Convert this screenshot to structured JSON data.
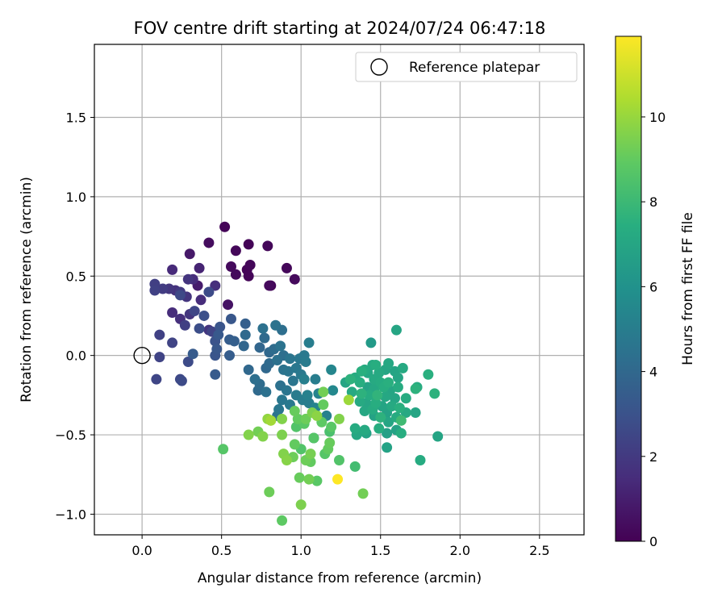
{
  "chart_data": {
    "type": "scatter",
    "title": "FOV centre drift starting at 2024/07/24 06:47:18",
    "xlabel": "Angular distance from reference (arcmin)",
    "ylabel": "Rotation from reference (arcmin)",
    "xlim": [
      -0.3,
      2.78
    ],
    "ylim": [
      -1.13,
      1.96
    ],
    "xticks": [
      "0.0",
      "0.5",
      "1.0",
      "1.5",
      "2.0",
      "2.5"
    ],
    "xtick_values": [
      0.0,
      0.5,
      1.0,
      1.5,
      2.0,
      2.5
    ],
    "yticks": [
      "−1.0",
      "−0.5",
      "0.0",
      "0.5",
      "1.0",
      "1.5"
    ],
    "ytick_values": [
      -1.0,
      -0.5,
      0.0,
      0.5,
      1.0,
      1.5
    ],
    "grid": true,
    "legend": {
      "position": "top-right",
      "label": "Reference platepar",
      "marker": "open-circle"
    },
    "reference_point": {
      "x": 0.0,
      "y": 0.0
    },
    "colorbar": {
      "label": "Hours from first FF file",
      "colormap": "viridis",
      "min": 0,
      "max": 11.9,
      "ticks": [
        "0",
        "2",
        "4",
        "6",
        "8",
        "10"
      ],
      "tick_values": [
        0,
        2,
        4,
        6,
        8,
        10
      ]
    },
    "points": [
      {
        "x": 0.52,
        "y": 0.81,
        "c": 0.1
      },
      {
        "x": 0.67,
        "y": 0.7,
        "c": 0.1
      },
      {
        "x": 0.79,
        "y": 0.69,
        "c": 0.2
      },
      {
        "x": 0.42,
        "y": 0.71,
        "c": 0.4
      },
      {
        "x": 0.59,
        "y": 0.66,
        "c": 0.2
      },
      {
        "x": 0.3,
        "y": 0.64,
        "c": 0.8
      },
      {
        "x": 0.56,
        "y": 0.56,
        "c": 0.3
      },
      {
        "x": 0.68,
        "y": 0.57,
        "c": 0.2
      },
      {
        "x": 0.66,
        "y": 0.54,
        "c": 0.1
      },
      {
        "x": 0.91,
        "y": 0.55,
        "c": 0.2
      },
      {
        "x": 0.59,
        "y": 0.51,
        "c": 0.3
      },
      {
        "x": 0.67,
        "y": 0.5,
        "c": 0.1
      },
      {
        "x": 0.96,
        "y": 0.48,
        "c": 0.3
      },
      {
        "x": 0.8,
        "y": 0.44,
        "c": 0.3
      },
      {
        "x": 0.81,
        "y": 0.44,
        "c": 0.1
      },
      {
        "x": 0.36,
        "y": 0.55,
        "c": 1.2
      },
      {
        "x": 0.19,
        "y": 0.54,
        "c": 1.4
      },
      {
        "x": 0.32,
        "y": 0.48,
        "c": 1.5
      },
      {
        "x": 0.29,
        "y": 0.48,
        "c": 1.8
      },
      {
        "x": 0.35,
        "y": 0.44,
        "c": 0.9
      },
      {
        "x": 0.46,
        "y": 0.44,
        "c": 1.6
      },
      {
        "x": 0.08,
        "y": 0.45,
        "c": 2.2
      },
      {
        "x": 0.08,
        "y": 0.41,
        "c": 2.3
      },
      {
        "x": 0.13,
        "y": 0.42,
        "c": 2.1
      },
      {
        "x": 0.17,
        "y": 0.42,
        "c": 1.9
      },
      {
        "x": 0.21,
        "y": 0.41,
        "c": 1.7
      },
      {
        "x": 0.24,
        "y": 0.4,
        "c": 2.0
      },
      {
        "x": 0.24,
        "y": 0.38,
        "c": 2.6
      },
      {
        "x": 0.28,
        "y": 0.37,
        "c": 1.8
      },
      {
        "x": 0.42,
        "y": 0.4,
        "c": 2.7
      },
      {
        "x": 0.37,
        "y": 0.35,
        "c": 1.5
      },
      {
        "x": 0.54,
        "y": 0.32,
        "c": 0.6
      },
      {
        "x": 0.19,
        "y": 0.27,
        "c": 1.5
      },
      {
        "x": 0.3,
        "y": 0.26,
        "c": 1.8
      },
      {
        "x": 0.33,
        "y": 0.28,
        "c": 2.5
      },
      {
        "x": 0.39,
        "y": 0.25,
        "c": 2.9
      },
      {
        "x": 0.24,
        "y": 0.23,
        "c": 1.6
      },
      {
        "x": 0.56,
        "y": 0.23,
        "c": 3.2
      },
      {
        "x": 0.27,
        "y": 0.19,
        "c": 2.2
      },
      {
        "x": 0.36,
        "y": 0.17,
        "c": 2.8
      },
      {
        "x": 0.42,
        "y": 0.16,
        "c": 1.8
      },
      {
        "x": 0.44,
        "y": 0.15,
        "c": 2.4
      },
      {
        "x": 0.49,
        "y": 0.18,
        "c": 3.1
      },
      {
        "x": 0.48,
        "y": 0.13,
        "c": 3.3
      },
      {
        "x": 0.46,
        "y": 0.09,
        "c": 3.0
      },
      {
        "x": 0.58,
        "y": 0.09,
        "c": 3.6
      },
      {
        "x": 0.55,
        "y": 0.1,
        "c": 3.5
      },
      {
        "x": 0.65,
        "y": 0.2,
        "c": 3.6
      },
      {
        "x": 0.11,
        "y": 0.13,
        "c": 2.3
      },
      {
        "x": 0.19,
        "y": 0.08,
        "c": 2.4
      },
      {
        "x": 0.47,
        "y": 0.04,
        "c": 3.2
      },
      {
        "x": 0.65,
        "y": 0.13,
        "c": 4.1
      },
      {
        "x": 0.64,
        "y": 0.06,
        "c": 3.9
      },
      {
        "x": 0.32,
        "y": 0.01,
        "c": 3.4
      },
      {
        "x": 0.55,
        "y": 0.0,
        "c": 3.5
      },
      {
        "x": 0.46,
        "y": 0.0,
        "c": 3.1
      },
      {
        "x": 0.11,
        "y": -0.01,
        "c": 2.4
      },
      {
        "x": 0.29,
        "y": -0.04,
        "c": 2.7
      },
      {
        "x": 0.46,
        "y": -0.12,
        "c": 3.4
      },
      {
        "x": 0.09,
        "y": -0.15,
        "c": 2.5
      },
      {
        "x": 0.24,
        "y": -0.15,
        "c": 2.6
      },
      {
        "x": 0.25,
        "y": -0.16,
        "c": 2.7
      },
      {
        "x": 0.76,
        "y": 0.17,
        "c": 4.4
      },
      {
        "x": 0.84,
        "y": 0.19,
        "c": 4.5
      },
      {
        "x": 0.88,
        "y": 0.16,
        "c": 4.3
      },
      {
        "x": 0.77,
        "y": 0.11,
        "c": 4.1
      },
      {
        "x": 0.74,
        "y": 0.05,
        "c": 3.9
      },
      {
        "x": 0.87,
        "y": 0.06,
        "c": 4.5
      },
      {
        "x": 0.83,
        "y": 0.04,
        "c": 4.2
      },
      {
        "x": 0.8,
        "y": 0.02,
        "c": 4.0
      },
      {
        "x": 0.89,
        "y": 0.0,
        "c": 4.3
      },
      {
        "x": 0.93,
        "y": -0.02,
        "c": 4.6
      },
      {
        "x": 0.85,
        "y": -0.03,
        "c": 4.4
      },
      {
        "x": 0.8,
        "y": -0.05,
        "c": 4.1
      },
      {
        "x": 0.78,
        "y": -0.08,
        "c": 4.0
      },
      {
        "x": 0.67,
        "y": -0.09,
        "c": 4.0
      },
      {
        "x": 0.71,
        "y": -0.15,
        "c": 4.3
      },
      {
        "x": 0.74,
        "y": -0.18,
        "c": 4.2
      },
      {
        "x": 0.78,
        "y": -0.23,
        "c": 4.4
      },
      {
        "x": 0.73,
        "y": -0.22,
        "c": 4.1
      },
      {
        "x": 0.87,
        "y": -0.19,
        "c": 4.4
      },
      {
        "x": 0.89,
        "y": -0.09,
        "c": 4.5
      },
      {
        "x": 0.92,
        "y": -0.1,
        "c": 4.6
      },
      {
        "x": 0.99,
        "y": -0.02,
        "c": 4.7
      },
      {
        "x": 1.02,
        "y": 0.0,
        "c": 4.8
      },
      {
        "x": 1.05,
        "y": 0.08,
        "c": 5.0
      },
      {
        "x": 1.03,
        "y": -0.04,
        "c": 4.9
      },
      {
        "x": 0.97,
        "y": -0.08,
        "c": 4.7
      },
      {
        "x": 1.0,
        "y": -0.12,
        "c": 4.8
      },
      {
        "x": 0.95,
        "y": -0.16,
        "c": 4.6
      },
      {
        "x": 1.02,
        "y": -0.15,
        "c": 5.1
      },
      {
        "x": 1.09,
        "y": -0.15,
        "c": 5.0
      },
      {
        "x": 0.91,
        "y": -0.22,
        "c": 4.6
      },
      {
        "x": 0.97,
        "y": -0.25,
        "c": 4.9
      },
      {
        "x": 1.04,
        "y": -0.25,
        "c": 5.2
      },
      {
        "x": 0.88,
        "y": -0.28,
        "c": 4.7
      },
      {
        "x": 1.01,
        "y": -0.28,
        "c": 5.0
      },
      {
        "x": 1.11,
        "y": -0.24,
        "c": 5.3
      },
      {
        "x": 1.19,
        "y": -0.09,
        "c": 5.4
      },
      {
        "x": 1.2,
        "y": -0.22,
        "c": 5.5
      },
      {
        "x": 1.05,
        "y": -0.3,
        "c": 5.0
      },
      {
        "x": 1.09,
        "y": -0.33,
        "c": 5.3
      },
      {
        "x": 0.93,
        "y": -0.31,
        "c": 4.8
      },
      {
        "x": 0.86,
        "y": -0.34,
        "c": 4.7
      },
      {
        "x": 0.85,
        "y": -0.38,
        "c": 4.5
      },
      {
        "x": 1.16,
        "y": -0.38,
        "c": 5.2
      },
      {
        "x": 1.08,
        "y": -0.52,
        "c": 5.3
      },
      {
        "x": 1.14,
        "y": -0.31,
        "c": 9.0
      },
      {
        "x": 1.14,
        "y": -0.23,
        "c": 9.3
      },
      {
        "x": 0.96,
        "y": -0.35,
        "c": 9.1
      },
      {
        "x": 1.07,
        "y": -0.36,
        "c": 9.5
      },
      {
        "x": 1.1,
        "y": -0.38,
        "c": 9.8
      },
      {
        "x": 1.3,
        "y": -0.28,
        "c": 10.1
      },
      {
        "x": 1.24,
        "y": -0.4,
        "c": 9.6
      },
      {
        "x": 1.03,
        "y": -0.4,
        "c": 9.2
      },
      {
        "x": 0.98,
        "y": -0.4,
        "c": 9.0
      },
      {
        "x": 1.02,
        "y": -0.43,
        "c": 8.8
      },
      {
        "x": 0.97,
        "y": -0.45,
        "c": 8.6
      },
      {
        "x": 0.88,
        "y": -0.4,
        "c": 9.6
      },
      {
        "x": 0.81,
        "y": -0.41,
        "c": 10.2
      },
      {
        "x": 0.79,
        "y": -0.4,
        "c": 9.9
      },
      {
        "x": 1.13,
        "y": -0.42,
        "c": 8.9
      },
      {
        "x": 1.19,
        "y": -0.45,
        "c": 8.8
      },
      {
        "x": 1.18,
        "y": -0.48,
        "c": 8.4
      },
      {
        "x": 0.67,
        "y": -0.5,
        "c": 9.6
      },
      {
        "x": 0.73,
        "y": -0.48,
        "c": 9.3
      },
      {
        "x": 0.76,
        "y": -0.51,
        "c": 9.6
      },
      {
        "x": 0.88,
        "y": -0.5,
        "c": 9.5
      },
      {
        "x": 1.08,
        "y": -0.52,
        "c": 8.7
      },
      {
        "x": 1.18,
        "y": -0.55,
        "c": 9.1
      },
      {
        "x": 0.96,
        "y": -0.56,
        "c": 9.0
      },
      {
        "x": 1.0,
        "y": -0.59,
        "c": 8.6
      },
      {
        "x": 0.51,
        "y": -0.59,
        "c": 8.7
      },
      {
        "x": 1.17,
        "y": -0.59,
        "c": 9.0
      },
      {
        "x": 0.89,
        "y": -0.62,
        "c": 9.6
      },
      {
        "x": 1.06,
        "y": -0.62,
        "c": 9.4
      },
      {
        "x": 1.15,
        "y": -0.62,
        "c": 8.7
      },
      {
        "x": 0.95,
        "y": -0.64,
        "c": 9.2
      },
      {
        "x": 0.91,
        "y": -0.66,
        "c": 9.7
      },
      {
        "x": 1.03,
        "y": -0.66,
        "c": 9.2
      },
      {
        "x": 1.06,
        "y": -0.67,
        "c": 9.0
      },
      {
        "x": 1.24,
        "y": -0.66,
        "c": 8.6
      },
      {
        "x": 1.34,
        "y": -0.7,
        "c": 8.2
      },
      {
        "x": 0.99,
        "y": -0.77,
        "c": 9.1
      },
      {
        "x": 1.05,
        "y": -0.78,
        "c": 9.3
      },
      {
        "x": 1.1,
        "y": -0.79,
        "c": 8.8
      },
      {
        "x": 1.23,
        "y": -0.78,
        "c": 11.9
      },
      {
        "x": 0.8,
        "y": -0.86,
        "c": 9.2
      },
      {
        "x": 1.39,
        "y": -0.87,
        "c": 9.3
      },
      {
        "x": 1.0,
        "y": -0.94,
        "c": 9.5
      },
      {
        "x": 0.88,
        "y": -1.04,
        "c": 8.9
      },
      {
        "x": 1.44,
        "y": 0.08,
        "c": 6.4
      },
      {
        "x": 1.6,
        "y": 0.16,
        "c": 7.0
      },
      {
        "x": 1.55,
        "y": -0.05,
        "c": 7.1
      },
      {
        "x": 1.45,
        "y": -0.06,
        "c": 7.2
      },
      {
        "x": 1.47,
        "y": -0.06,
        "c": 7.4
      },
      {
        "x": 1.4,
        "y": -0.09,
        "c": 7.3
      },
      {
        "x": 1.38,
        "y": -0.1,
        "c": 7.5
      },
      {
        "x": 1.42,
        "y": -0.11,
        "c": 7.1
      },
      {
        "x": 1.49,
        "y": -0.11,
        "c": 7.2
      },
      {
        "x": 1.53,
        "y": -0.09,
        "c": 7.0
      },
      {
        "x": 1.59,
        "y": -0.1,
        "c": 6.9
      },
      {
        "x": 1.64,
        "y": -0.08,
        "c": 7.2
      },
      {
        "x": 1.8,
        "y": -0.12,
        "c": 7.5
      },
      {
        "x": 1.34,
        "y": -0.14,
        "c": 7.3
      },
      {
        "x": 1.31,
        "y": -0.15,
        "c": 7.6
      },
      {
        "x": 1.37,
        "y": -0.17,
        "c": 7.4
      },
      {
        "x": 1.46,
        "y": -0.15,
        "c": 7.2
      },
      {
        "x": 1.5,
        "y": -0.17,
        "c": 7.3
      },
      {
        "x": 1.55,
        "y": -0.17,
        "c": 7.5
      },
      {
        "x": 1.61,
        "y": -0.14,
        "c": 7.0
      },
      {
        "x": 1.73,
        "y": -0.2,
        "c": 7.3
      },
      {
        "x": 1.72,
        "y": -0.21,
        "c": 7.6
      },
      {
        "x": 1.28,
        "y": -0.17,
        "c": 6.9
      },
      {
        "x": 1.42,
        "y": -0.2,
        "c": 6.8
      },
      {
        "x": 1.46,
        "y": -0.21,
        "c": 7.1
      },
      {
        "x": 1.52,
        "y": -0.2,
        "c": 7.4
      },
      {
        "x": 1.56,
        "y": -0.22,
        "c": 7.0
      },
      {
        "x": 1.61,
        "y": -0.2,
        "c": 7.3
      },
      {
        "x": 1.32,
        "y": -0.23,
        "c": 7.2
      },
      {
        "x": 1.38,
        "y": -0.24,
        "c": 7.6
      },
      {
        "x": 1.43,
        "y": -0.25,
        "c": 7.3
      },
      {
        "x": 1.48,
        "y": -0.25,
        "c": 7.7
      },
      {
        "x": 1.53,
        "y": -0.26,
        "c": 7.1
      },
      {
        "x": 1.59,
        "y": -0.27,
        "c": 7.0
      },
      {
        "x": 1.66,
        "y": -0.27,
        "c": 7.3
      },
      {
        "x": 1.84,
        "y": -0.24,
        "c": 7.6
      },
      {
        "x": 1.37,
        "y": -0.29,
        "c": 7.2
      },
      {
        "x": 1.41,
        "y": -0.3,
        "c": 7.0
      },
      {
        "x": 1.47,
        "y": -0.3,
        "c": 7.4
      },
      {
        "x": 1.51,
        "y": -0.32,
        "c": 6.9
      },
      {
        "x": 1.57,
        "y": -0.32,
        "c": 7.2
      },
      {
        "x": 1.62,
        "y": -0.33,
        "c": 7.5
      },
      {
        "x": 1.45,
        "y": -0.34,
        "c": 7.3
      },
      {
        "x": 1.4,
        "y": -0.35,
        "c": 7.1
      },
      {
        "x": 1.54,
        "y": -0.36,
        "c": 6.8
      },
      {
        "x": 1.66,
        "y": -0.36,
        "c": 7.2
      },
      {
        "x": 1.72,
        "y": -0.36,
        "c": 7.0
      },
      {
        "x": 1.46,
        "y": -0.38,
        "c": 6.8
      },
      {
        "x": 1.5,
        "y": -0.39,
        "c": 7.6
      },
      {
        "x": 1.6,
        "y": -0.39,
        "c": 7.3
      },
      {
        "x": 1.63,
        "y": -0.41,
        "c": 8.1
      },
      {
        "x": 1.55,
        "y": -0.42,
        "c": 7.0
      },
      {
        "x": 1.34,
        "y": -0.46,
        "c": 7.3
      },
      {
        "x": 1.4,
        "y": -0.47,
        "c": 7.2
      },
      {
        "x": 1.49,
        "y": -0.46,
        "c": 7.4
      },
      {
        "x": 1.6,
        "y": -0.47,
        "c": 6.8
      },
      {
        "x": 1.35,
        "y": -0.5,
        "c": 7.1
      },
      {
        "x": 1.41,
        "y": -0.49,
        "c": 6.8
      },
      {
        "x": 1.54,
        "y": -0.49,
        "c": 6.7
      },
      {
        "x": 1.63,
        "y": -0.49,
        "c": 7.4
      },
      {
        "x": 1.86,
        "y": -0.51,
        "c": 6.9
      },
      {
        "x": 1.54,
        "y": -0.58,
        "c": 6.8
      },
      {
        "x": 1.75,
        "y": -0.66,
        "c": 7.3
      }
    ]
  }
}
